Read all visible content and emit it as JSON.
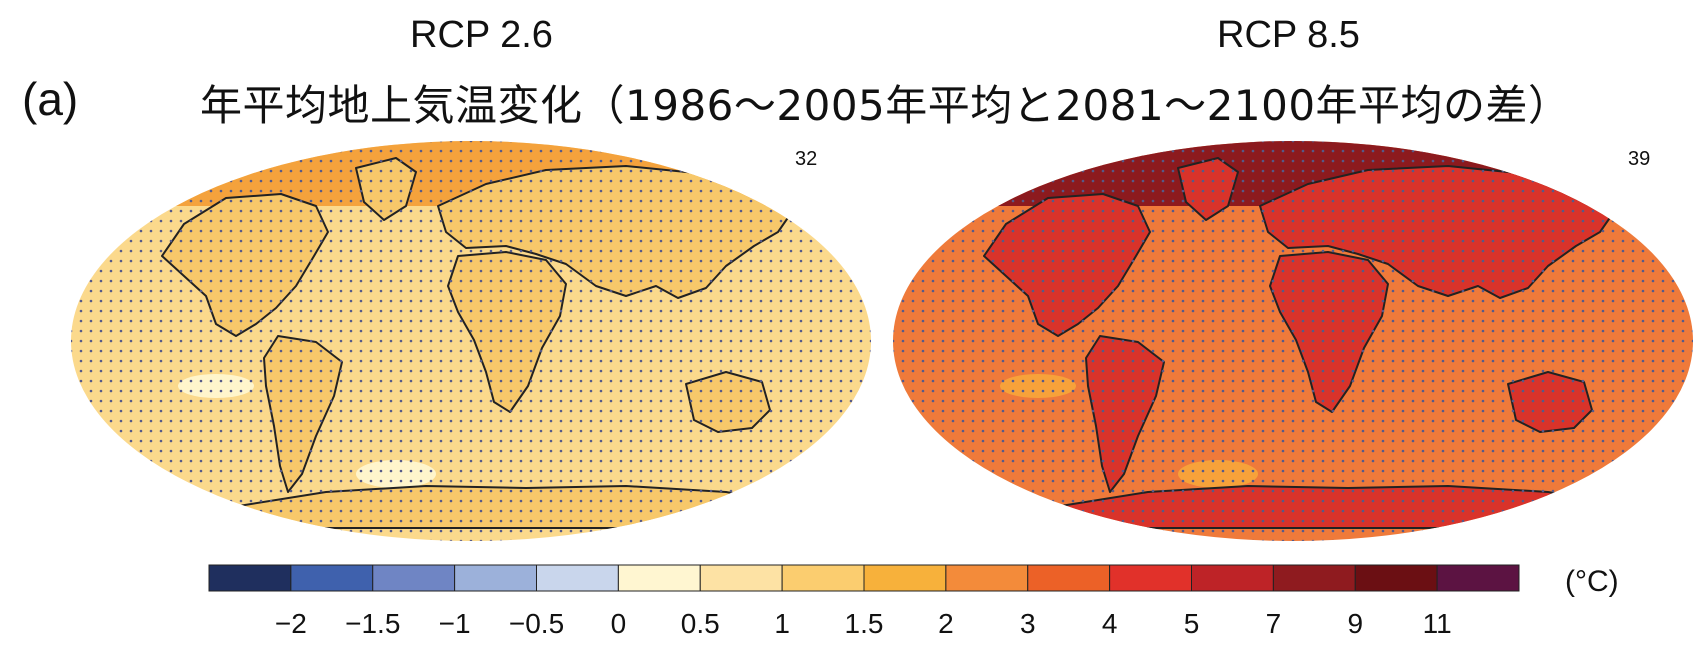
{
  "panel_label": "(a)",
  "main_title": "年平均地上気温変化（1986～2005年平均と2081～2100年平均の差）",
  "maps": [
    {
      "scenario": "RCP 2.6",
      "model_count": "32",
      "ocean_color": "#fbd98c",
      "land_color": "#f7c86a",
      "arctic_color": "#f4a23c",
      "cool_patch_color": "#fff5cc"
    },
    {
      "scenario": "RCP 8.5",
      "model_count": "39",
      "ocean_color": "#ef7a3a",
      "land_color": "#d9332a",
      "arctic_color": "#8c1a1e",
      "cool_patch_color": "#f7a23a"
    }
  ],
  "colorbar": {
    "unit": "(°C)",
    "colors": [
      "#1f2f5e",
      "#3f61ad",
      "#6f85c4",
      "#9cb1da",
      "#c9d6ec",
      "#fff6d1",
      "#fde2a4",
      "#fbcd6f",
      "#f7b13b",
      "#f38b3a",
      "#ec6127",
      "#e1312a",
      "#be2327",
      "#8f1b1f",
      "#6b0f13",
      "#5c1342"
    ],
    "tick_labels": [
      "−2",
      "−1.5",
      "−1",
      "−0.5",
      "0",
      "0.5",
      "1",
      "1.5",
      "2",
      "3",
      "4",
      "5",
      "7",
      "9",
      "11"
    ]
  }
}
